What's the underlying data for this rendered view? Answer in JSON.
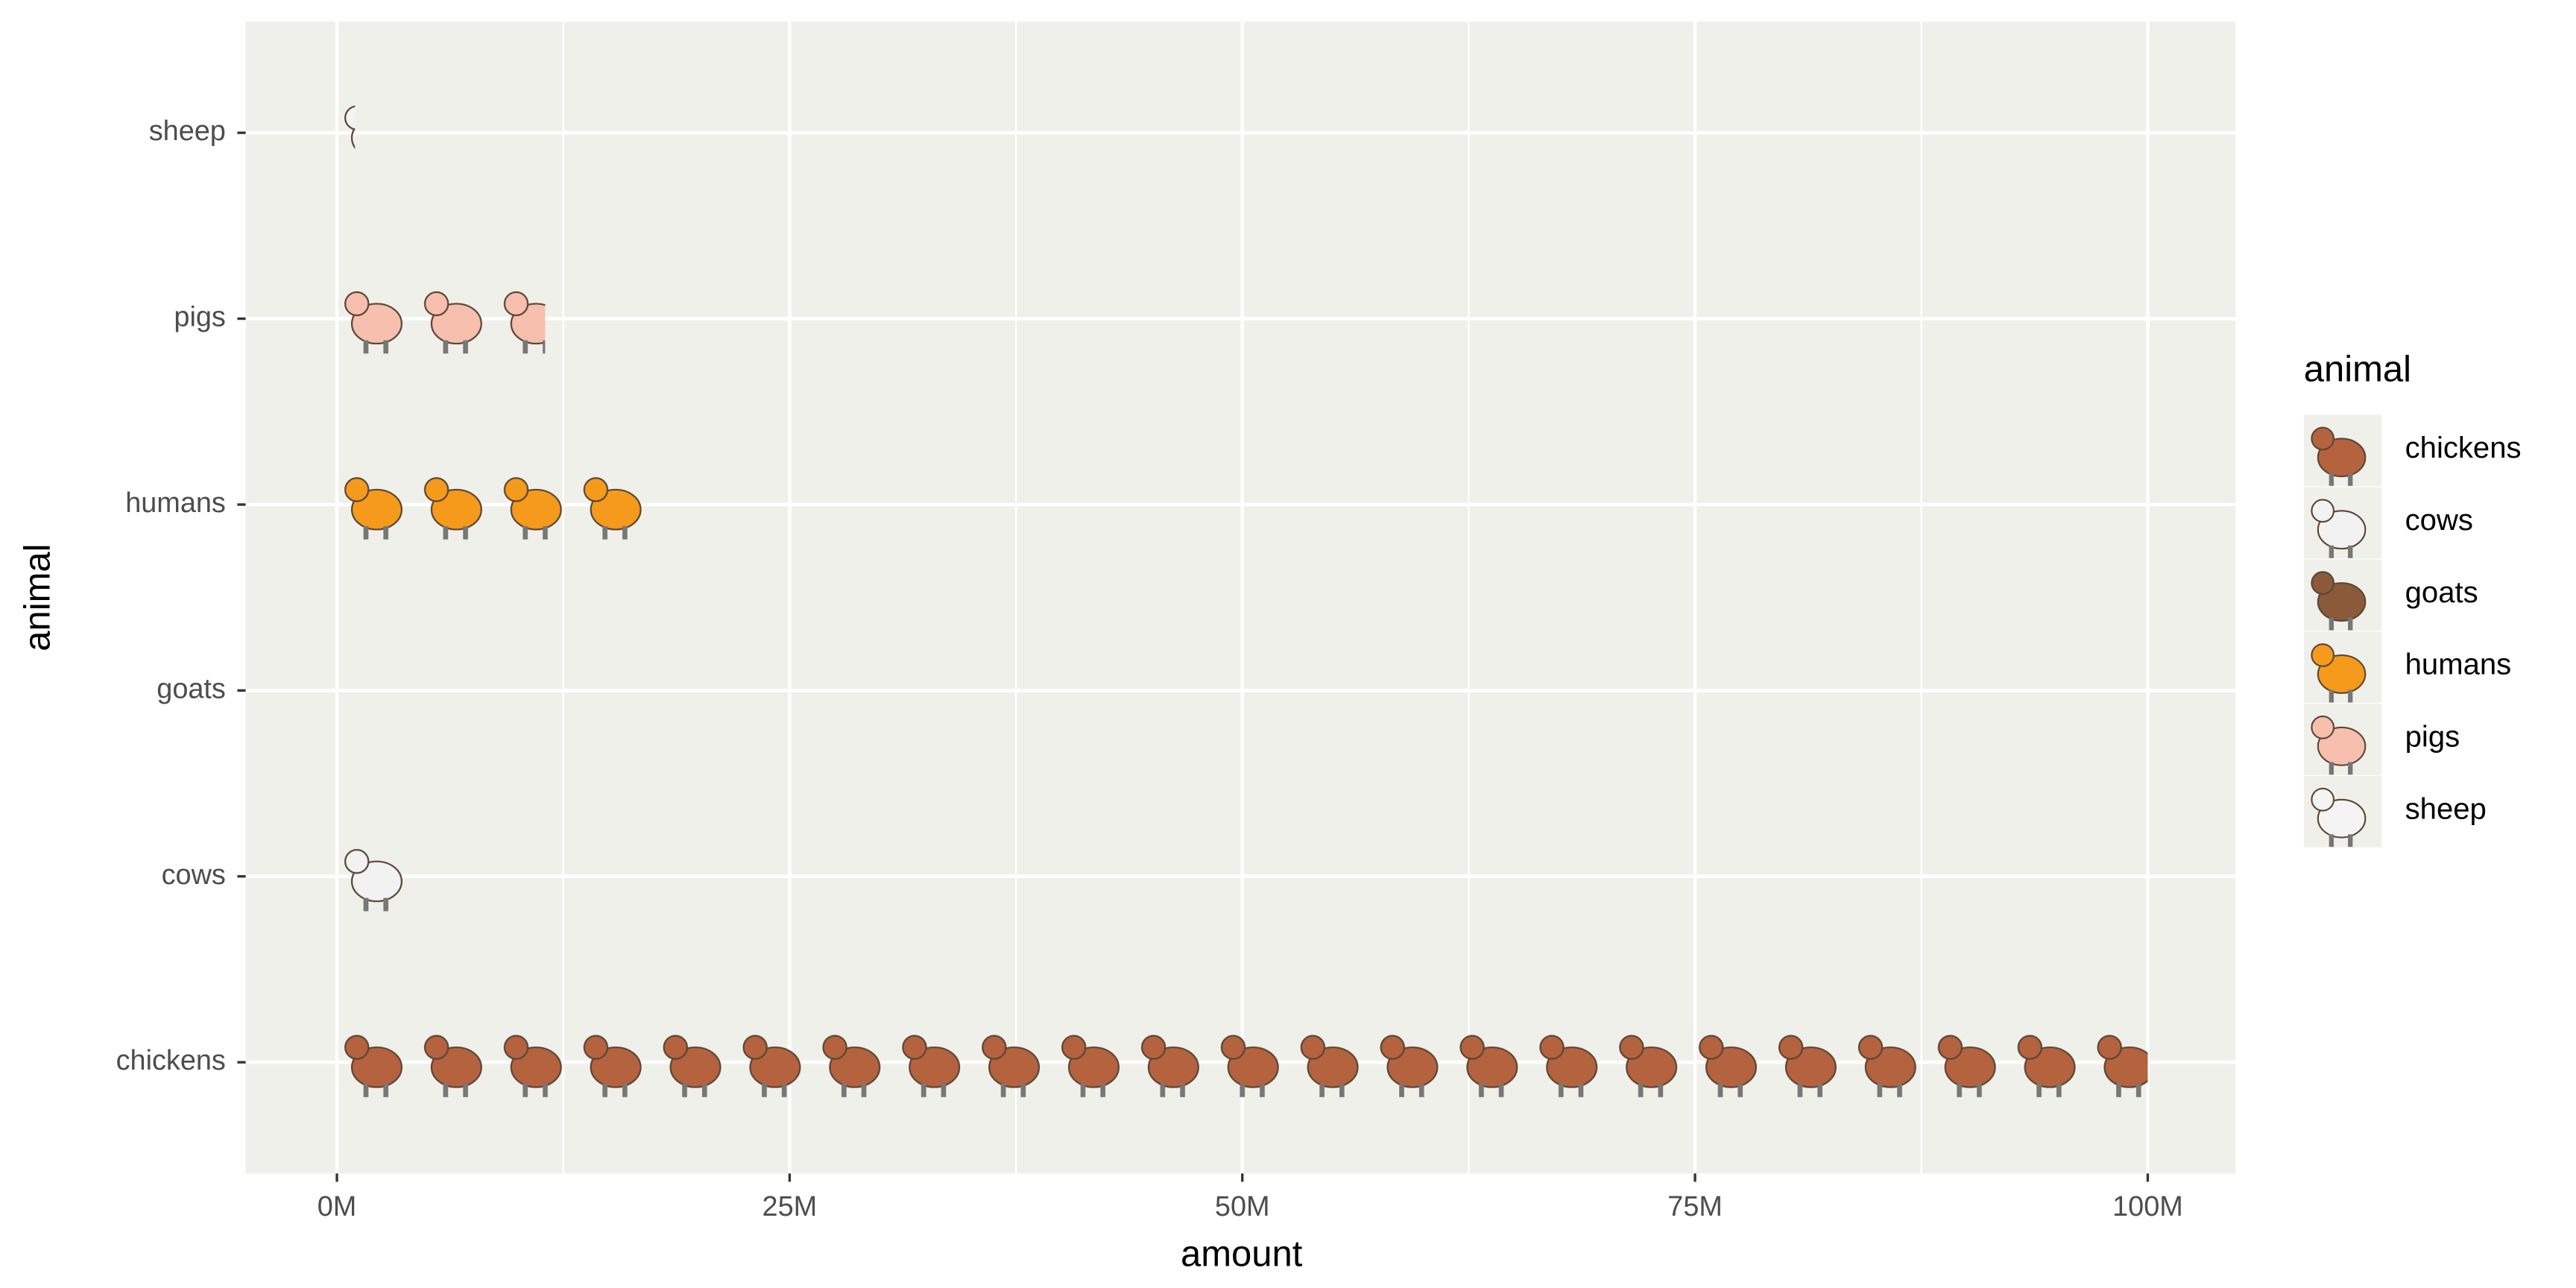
{
  "chart_data": {
    "type": "pictogram_bar",
    "categories": [
      "chickens",
      "cows",
      "goats",
      "humans",
      "pigs",
      "sheep"
    ],
    "values": [
      100,
      4,
      0,
      17.5,
      11.5,
      1
    ],
    "colors": [
      "#b5623f",
      "#f2f2f2",
      "#8a5a3b",
      "#f59a1b",
      "#f7bfae",
      "#f4f4f4"
    ],
    "x_label": "amount",
    "y_label": "animal",
    "legend_title": "animal",
    "xlim": [
      -5.04,
      104.86
    ],
    "xticks": [
      {
        "value": 0,
        "label": "0M"
      },
      {
        "value": 25,
        "label": "25M"
      },
      {
        "value": 50,
        "label": "50M"
      },
      {
        "value": 75,
        "label": "75M"
      },
      {
        "value": 100,
        "label": "100M"
      }
    ],
    "grid": true,
    "legend_position": "right"
  }
}
